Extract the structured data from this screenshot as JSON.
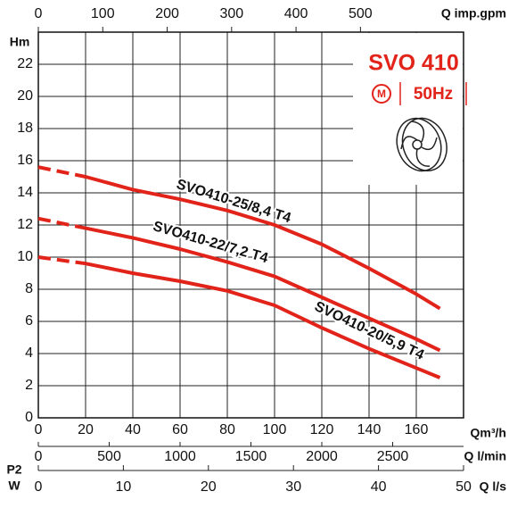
{
  "chart_data": {
    "type": "line",
    "y_label": "Hm",
    "x_label": "Qm³/h",
    "xlim": [
      0,
      180
    ],
    "xticks": [
      0,
      20,
      40,
      60,
      80,
      100,
      120,
      140,
      160
    ],
    "ylim": [
      0,
      24
    ],
    "yticks": [
      0,
      2,
      4,
      6,
      8,
      10,
      12,
      14,
      16,
      18,
      20,
      22
    ],
    "grid": true,
    "color": "#e2231a",
    "dashed_below": 20,
    "top_axis": {
      "label": "Q imp.gpm",
      "xlim": [
        0,
        660
      ],
      "xticks": [
        0,
        100,
        200,
        300,
        400,
        500
      ]
    },
    "bottom_axes": [
      {
        "label": "Q l/min",
        "xlim": [
          0,
          3000
        ],
        "xticks": [
          0,
          500,
          1000,
          1500,
          2000,
          2500
        ]
      },
      {
        "label": "Q l/s",
        "xlim": [
          0,
          50
        ],
        "xticks": [
          0,
          10,
          20,
          30,
          40,
          50
        ]
      }
    ],
    "power_label": [
      "P2",
      "W"
    ],
    "model": "SVO 410",
    "badge": "M",
    "frequency": "50Hz",
    "x": [
      0,
      20,
      40,
      60,
      80,
      100,
      120,
      140,
      160,
      170
    ],
    "series": [
      {
        "name": "SVO410-25/8,4 T4",
        "values": [
          15.6,
          15.0,
          14.2,
          13.6,
          12.9,
          12.0,
          10.8,
          9.3,
          7.7,
          6.8
        ]
      },
      {
        "name": "SVO410-22/7,2 T4",
        "values": [
          12.4,
          11.8,
          11.2,
          10.5,
          9.7,
          8.8,
          7.5,
          6.2,
          4.9,
          4.2
        ]
      },
      {
        "name": "SVO410-20/5,9 T4",
        "values": [
          10.0,
          9.6,
          9.0,
          8.5,
          7.9,
          7.0,
          5.6,
          4.3,
          3.1,
          2.5
        ]
      }
    ]
  }
}
